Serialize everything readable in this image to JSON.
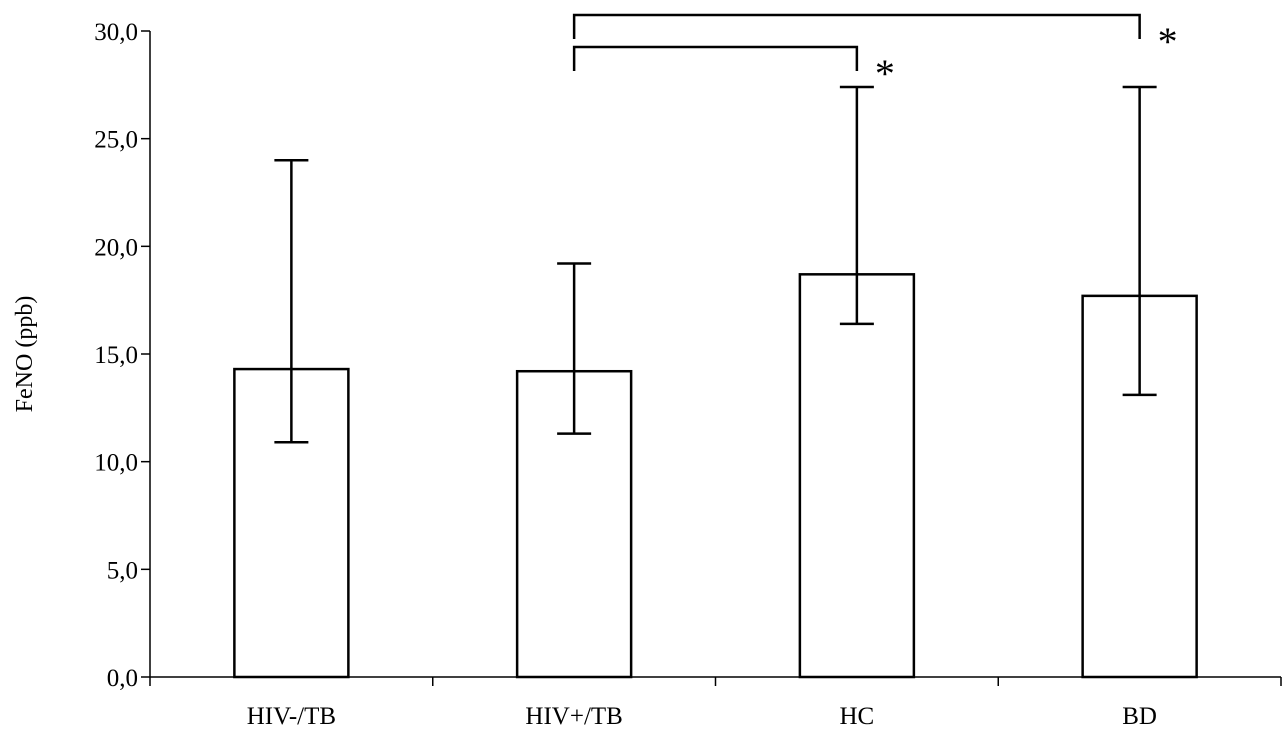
{
  "chart_data": {
    "type": "bar",
    "title": "",
    "xlabel": "",
    "ylabel": "FeNO (ppb)",
    "ylim": [
      0,
      30
    ],
    "yticks": [
      0,
      5,
      10,
      15,
      20,
      25,
      30
    ],
    "ytick_labels": [
      "0,0",
      "5,0",
      "10,0",
      "15,0",
      "20,0",
      "25,0",
      "30,0"
    ],
    "grid": false,
    "legend": "none",
    "categories": [
      "HIV-/TB",
      "HIV+/TB",
      "HC",
      "BD"
    ],
    "values": [
      14.3,
      14.2,
      18.7,
      17.7
    ],
    "error_lower": [
      10.9,
      11.3,
      16.4,
      13.1
    ],
    "error_upper": [
      24.0,
      19.2,
      27.4,
      27.4
    ],
    "significance": [
      {
        "from": "HIV+/TB",
        "to": "HC",
        "label": "*"
      },
      {
        "from": "HIV+/TB",
        "to": "BD",
        "label": "*"
      }
    ],
    "colors": {
      "bar_fill": "#ffffff",
      "stroke": "#000000"
    }
  }
}
